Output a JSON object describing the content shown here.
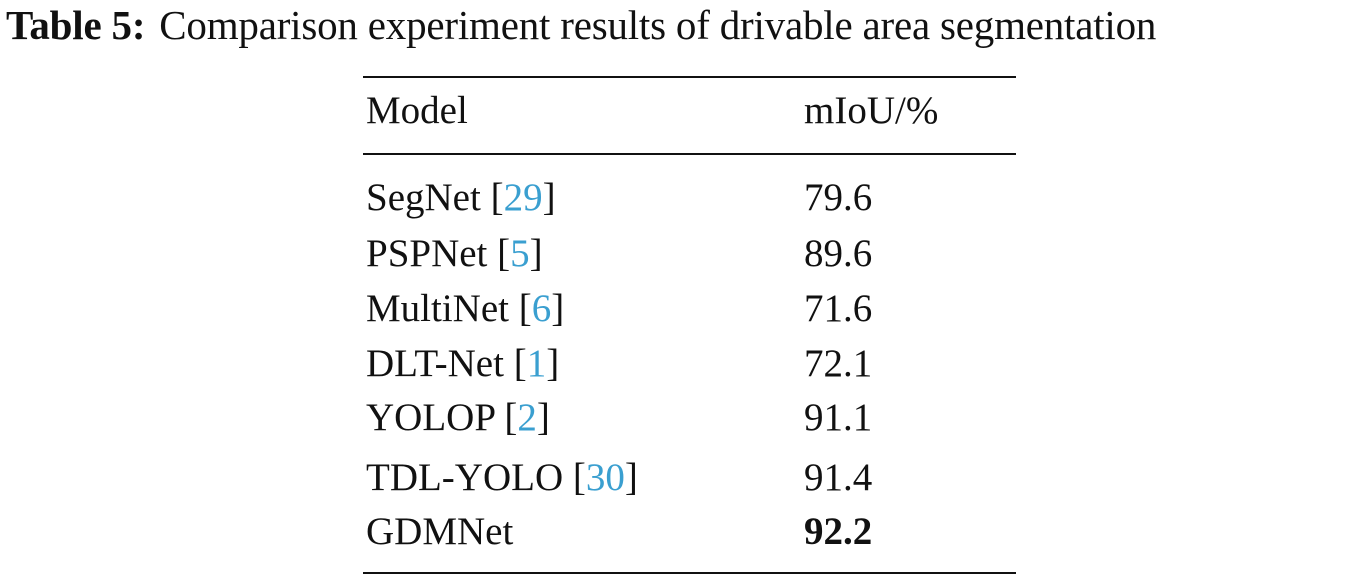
{
  "table": {
    "caption_label": "Table 5:",
    "caption_text": "Comparison experiment results of drivable area segmentation",
    "columns": [
      "Model",
      "mIoU/%"
    ],
    "rows": [
      {
        "model": "SegNet",
        "ref": "29",
        "miou": "79.6",
        "best": false
      },
      {
        "model": "PSPNet",
        "ref": "5",
        "miou": "89.6",
        "best": false
      },
      {
        "model": "MultiNet",
        "ref": "6",
        "miou": "71.6",
        "best": false
      },
      {
        "model": "DLT-Net",
        "ref": "1",
        "miou": "72.1",
        "best": false
      },
      {
        "model": "YOLOP",
        "ref": "2",
        "miou": "91.1",
        "best": false
      },
      {
        "model": "TDL-YOLO",
        "ref": "30",
        "miou": "91.4",
        "best": false
      },
      {
        "model": "GDMNet",
        "ref": "",
        "miou": "92.2",
        "best": true
      }
    ]
  },
  "colors": {
    "text": "#111111",
    "citation_link": "#3a9fd0"
  }
}
